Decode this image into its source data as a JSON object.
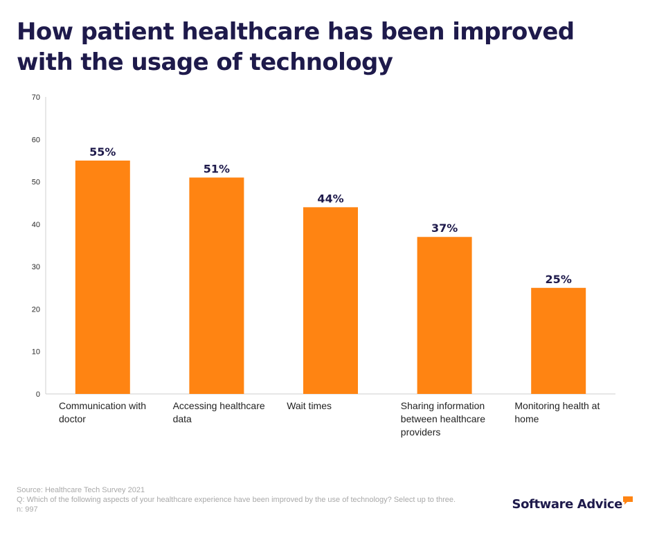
{
  "title": "How patient healthcare has been improved with the usage of technology",
  "chart_data": {
    "type": "bar",
    "categories": [
      "Communication with doctor",
      "Accessing healthcare data",
      "Wait times",
      "Sharing information between healthcare providers",
      "Monitoring health at home"
    ],
    "values": [
      55,
      51,
      44,
      37,
      25
    ],
    "data_labels": [
      "55%",
      "51%",
      "44%",
      "37%",
      "25%"
    ],
    "yticks": [
      0,
      10,
      20,
      30,
      40,
      50,
      60,
      70
    ],
    "ylim": [
      0,
      70
    ],
    "xlabel": "",
    "ylabel": "",
    "bar_color": "#ff8412",
    "grid": false
  },
  "footer": {
    "source": "Source: Healthcare Tech Survey 2021",
    "question": "Q: Which of the following aspects of your healthcare experience have been improved by the use of technology? Select up to three.",
    "n": "n: 997"
  },
  "brand": {
    "name": "Software Advice",
    "accent": "#ff8412"
  }
}
